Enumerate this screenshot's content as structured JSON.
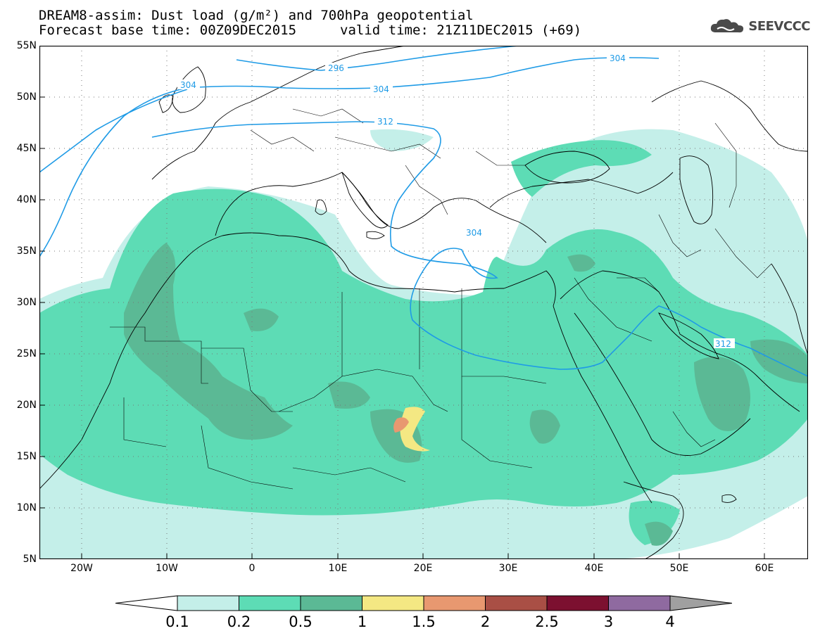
{
  "title": {
    "line1": "DREAM8-assim: Dust load (g/m²) and 700hPa geopotential",
    "line2_base": "Forecast base time: 00Z09DEC2015",
    "line2_valid": "valid time: 21Z11DEC2015 (+69)"
  },
  "logo": {
    "icon": "cloud-logo-icon",
    "text": "SEEVCCC"
  },
  "axes": {
    "lat_labels": [
      "55N",
      "50N",
      "45N",
      "40N",
      "35N",
      "30N",
      "25N",
      "20N",
      "15N",
      "10N",
      "5N"
    ],
    "lon_labels": [
      "20W",
      "10W",
      "0",
      "10E",
      "20E",
      "30E",
      "40E",
      "50E",
      "60E"
    ]
  },
  "contour_labels": [
    "296",
    "304",
    "304",
    "304",
    "312",
    "304",
    "312"
  ],
  "colorbar": {
    "colors": [
      "#c4efe9",
      "#5ddcb5",
      "#5bb995",
      "#f4e883",
      "#e89870",
      "#a94f45",
      "#7c1030",
      "#8f6aa0"
    ],
    "under_color": "#ffffff",
    "over_color": "#a0a0a0",
    "labels": [
      "0.1",
      "0.2",
      "0.5",
      "1",
      "1.5",
      "2",
      "2.5",
      "3",
      "4"
    ]
  },
  "palette": {
    "geopotential_line": "#1f9be6",
    "coastline": "#000000"
  }
}
